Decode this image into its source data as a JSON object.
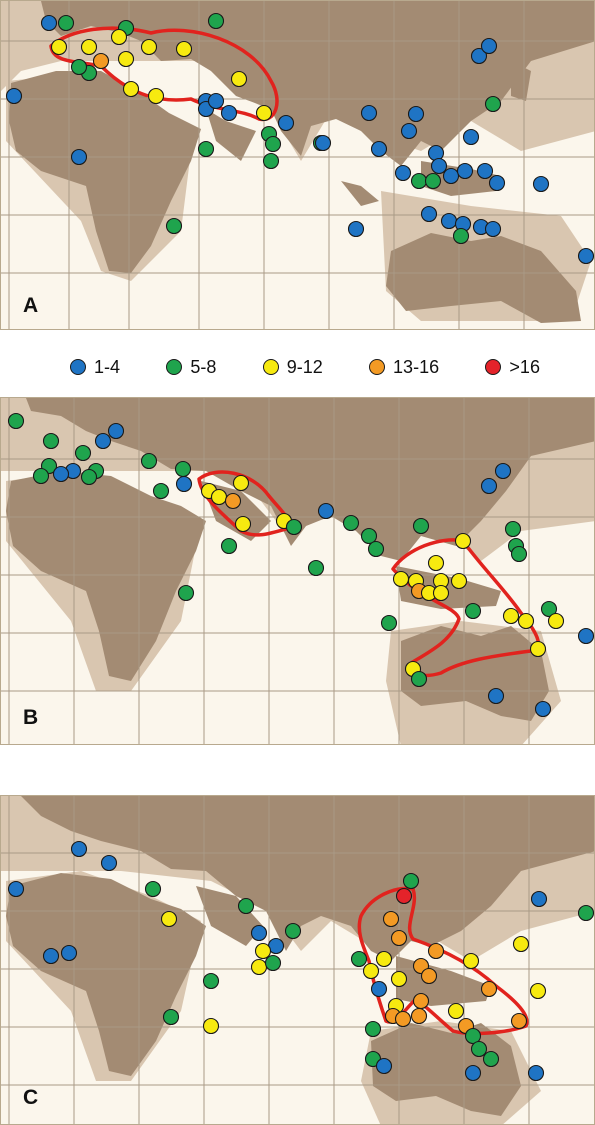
{
  "colors": {
    "land": "#a38b73",
    "shelf": "#d9c6b0",
    "ocean": "#fbf6ec",
    "grid": "#a99a86",
    "outline": "#e1231e"
  },
  "legend": [
    {
      "label": "1-4",
      "color": "#1f74c4"
    },
    {
      "label": "5-8",
      "color": "#1fa44d"
    },
    {
      "label": "9-12",
      "color": "#f7ea10"
    },
    {
      "label": "13-16",
      "color": "#f39a24"
    },
    {
      "label": ">16",
      "color": "#e4232a"
    }
  ],
  "panels": [
    {
      "label": "A",
      "points": [
        [
          48,
          22,
          0
        ],
        [
          65,
          22,
          1
        ],
        [
          125,
          27,
          1
        ],
        [
          215,
          20,
          1
        ],
        [
          58,
          46,
          2
        ],
        [
          88,
          46,
          2
        ],
        [
          118,
          36,
          2
        ],
        [
          148,
          46,
          2
        ],
        [
          183,
          48,
          2
        ],
        [
          100,
          60,
          3
        ],
        [
          125,
          58,
          2
        ],
        [
          88,
          72,
          1
        ],
        [
          78,
          66,
          1
        ],
        [
          130,
          88,
          2
        ],
        [
          155,
          95,
          2
        ],
        [
          238,
          78,
          2
        ],
        [
          263,
          112,
          2
        ],
        [
          13,
          95,
          0
        ],
        [
          205,
          100,
          0
        ],
        [
          205,
          108,
          0
        ],
        [
          215,
          100,
          0
        ],
        [
          228,
          112,
          0
        ],
        [
          285,
          122,
          0
        ],
        [
          268,
          133,
          1
        ],
        [
          270,
          160,
          1
        ],
        [
          272,
          143,
          1
        ],
        [
          205,
          148,
          1
        ],
        [
          78,
          156,
          0
        ],
        [
          173,
          225,
          1
        ],
        [
          320,
          142,
          1
        ],
        [
          322,
          142,
          0
        ],
        [
          478,
          55,
          0
        ],
        [
          488,
          45,
          0
        ],
        [
          492,
          103,
          1
        ],
        [
          415,
          113,
          0
        ],
        [
          408,
          130,
          0
        ],
        [
          368,
          112,
          0
        ],
        [
          378,
          148,
          0
        ],
        [
          470,
          136,
          0
        ],
        [
          435,
          152,
          0
        ],
        [
          438,
          165,
          0
        ],
        [
          402,
          172,
          0
        ],
        [
          418,
          180,
          1
        ],
        [
          432,
          180,
          1
        ],
        [
          450,
          175,
          0
        ],
        [
          464,
          170,
          0
        ],
        [
          484,
          170,
          0
        ],
        [
          496,
          182,
          0
        ],
        [
          540,
          183,
          0
        ],
        [
          428,
          213,
          0
        ],
        [
          448,
          220,
          0
        ],
        [
          462,
          223,
          0
        ],
        [
          480,
          226,
          0
        ],
        [
          492,
          228,
          0
        ],
        [
          460,
          235,
          1
        ],
        [
          355,
          228,
          0
        ],
        [
          585,
          255,
          0
        ]
      ]
    },
    {
      "label": "B",
      "points": [
        [
          15,
          420,
          1
        ],
        [
          50,
          440,
          1
        ],
        [
          48,
          465,
          1
        ],
        [
          102,
          440,
          0
        ],
        [
          115,
          430,
          0
        ],
        [
          82,
          452,
          1
        ],
        [
          95,
          470,
          1
        ],
        [
          88,
          476,
          1
        ],
        [
          72,
          470,
          0
        ],
        [
          60,
          473,
          0
        ],
        [
          40,
          475,
          1
        ],
        [
          148,
          460,
          1
        ],
        [
          160,
          490,
          1
        ],
        [
          182,
          468,
          1
        ],
        [
          183,
          483,
          0
        ],
        [
          208,
          490,
          2
        ],
        [
          218,
          496,
          2
        ],
        [
          232,
          500,
          3
        ],
        [
          240,
          482,
          2
        ],
        [
          242,
          523,
          2
        ],
        [
          283,
          520,
          2
        ],
        [
          293,
          526,
          1
        ],
        [
          228,
          545,
          1
        ],
        [
          185,
          592,
          1
        ],
        [
          315,
          567,
          1
        ],
        [
          325,
          510,
          0
        ],
        [
          350,
          522,
          1
        ],
        [
          368,
          535,
          1
        ],
        [
          375,
          548,
          1
        ],
        [
          388,
          622,
          1
        ],
        [
          420,
          525,
          1
        ],
        [
          462,
          540,
          2
        ],
        [
          488,
          485,
          0
        ],
        [
          502,
          470,
          0
        ],
        [
          512,
          528,
          1
        ],
        [
          515,
          545,
          1
        ],
        [
          518,
          553,
          1
        ],
        [
          400,
          578,
          2
        ],
        [
          415,
          580,
          2
        ],
        [
          418,
          590,
          3
        ],
        [
          428,
          592,
          2
        ],
        [
          435,
          562,
          2
        ],
        [
          440,
          580,
          2
        ],
        [
          440,
          592,
          2
        ],
        [
          458,
          580,
          2
        ],
        [
          472,
          610,
          1
        ],
        [
          510,
          615,
          2
        ],
        [
          525,
          620,
          2
        ],
        [
          548,
          608,
          1
        ],
        [
          555,
          620,
          2
        ],
        [
          537,
          648,
          2
        ],
        [
          585,
          635,
          0
        ],
        [
          412,
          668,
          2
        ],
        [
          418,
          678,
          1
        ],
        [
          495,
          695,
          0
        ],
        [
          542,
          708,
          0
        ]
      ]
    },
    {
      "label": "C",
      "points": [
        [
          78,
          848,
          0
        ],
        [
          108,
          862,
          0
        ],
        [
          15,
          888,
          0
        ],
        [
          50,
          955,
          0
        ],
        [
          68,
          952,
          0
        ],
        [
          152,
          888,
          1
        ],
        [
          168,
          918,
          2
        ],
        [
          245,
          905,
          1
        ],
        [
          258,
          932,
          0
        ],
        [
          275,
          945,
          0
        ],
        [
          262,
          950,
          2
        ],
        [
          258,
          966,
          2
        ],
        [
          272,
          962,
          1
        ],
        [
          292,
          930,
          1
        ],
        [
          210,
          980,
          1
        ],
        [
          210,
          1025,
          2
        ],
        [
          170,
          1016,
          1
        ],
        [
          358,
          958,
          1
        ],
        [
          383,
          958,
          2
        ],
        [
          370,
          970,
          2
        ],
        [
          378,
          988,
          0
        ],
        [
          398,
          978,
          2
        ],
        [
          395,
          1005,
          2
        ],
        [
          392,
          1015,
          3
        ],
        [
          402,
          1018,
          3
        ],
        [
          390,
          918,
          3
        ],
        [
          403,
          895,
          4
        ],
        [
          410,
          880,
          1
        ],
        [
          398,
          937,
          3
        ],
        [
          420,
          965,
          3
        ],
        [
          428,
          975,
          3
        ],
        [
          420,
          1000,
          3
        ],
        [
          418,
          1015,
          3
        ],
        [
          435,
          950,
          3
        ],
        [
          470,
          960,
          2
        ],
        [
          455,
          1010,
          2
        ],
        [
          465,
          1025,
          3
        ],
        [
          488,
          988,
          3
        ],
        [
          520,
          943,
          2
        ],
        [
          537,
          990,
          2
        ],
        [
          518,
          1020,
          3
        ],
        [
          538,
          898,
          0
        ],
        [
          585,
          912,
          1
        ],
        [
          372,
          1028,
          1
        ],
        [
          372,
          1058,
          1
        ],
        [
          383,
          1065,
          0
        ],
        [
          472,
          1035,
          1
        ],
        [
          478,
          1048,
          1
        ],
        [
          490,
          1058,
          1
        ],
        [
          472,
          1072,
          0
        ],
        [
          535,
          1072,
          0
        ]
      ]
    }
  ]
}
